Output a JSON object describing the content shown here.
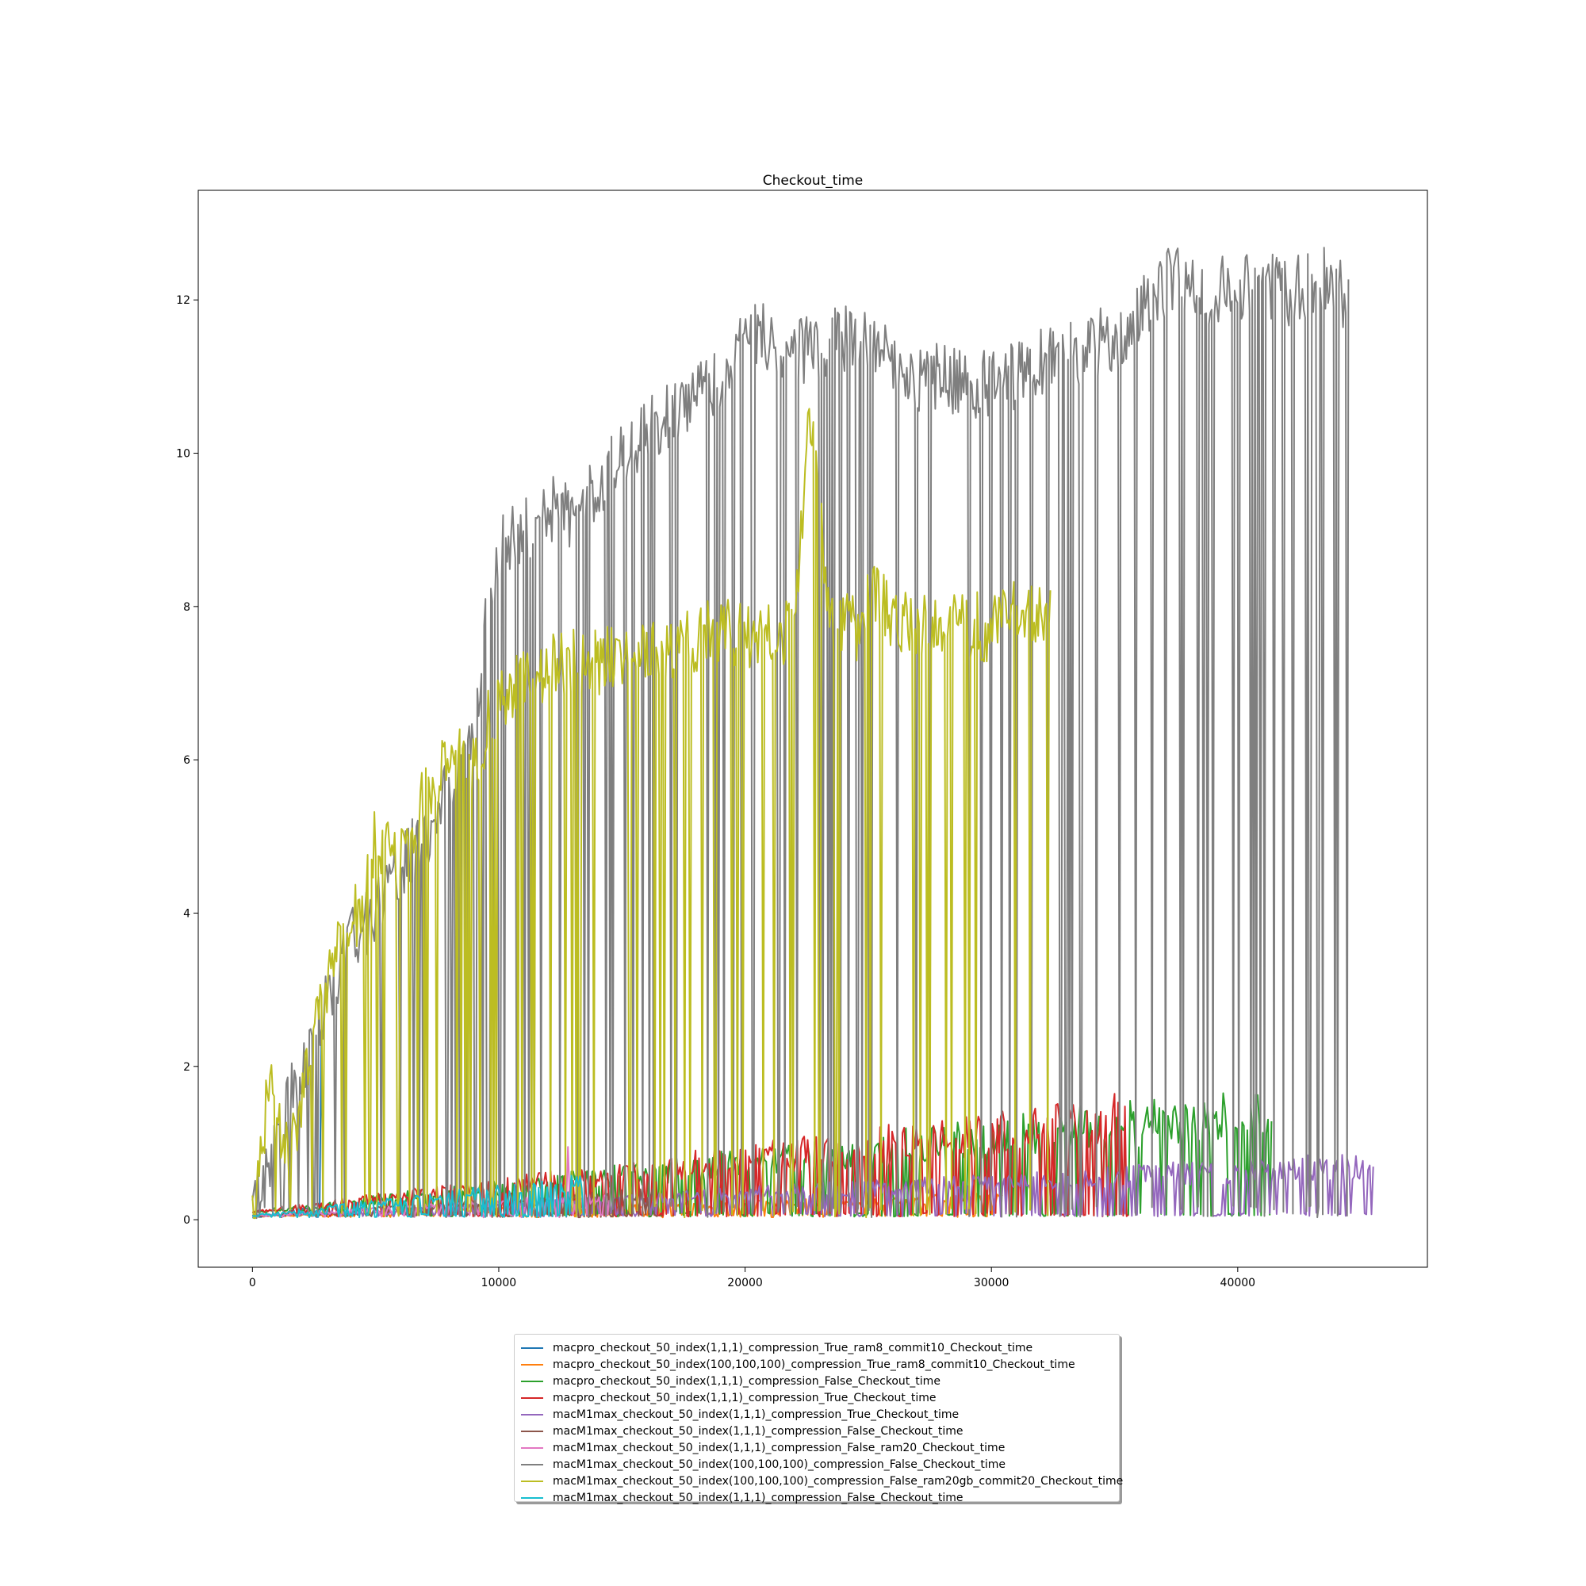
{
  "chart_data": {
    "type": "line",
    "title": "Checkout_time",
    "xlabel": "",
    "ylabel": "",
    "xlim": [
      -2200,
      47700
    ],
    "ylim": [
      -0.62,
      13.43
    ],
    "x_ticks": [
      0,
      10000,
      20000,
      30000,
      40000
    ],
    "x_tick_labels": [
      "0",
      "10000",
      "20000",
      "30000",
      "40000"
    ],
    "y_ticks": [
      0,
      2,
      4,
      6,
      8,
      10,
      12
    ],
    "y_tick_labels": [
      "0",
      "2",
      "4",
      "6",
      "8",
      "10",
      "12"
    ],
    "grid": false,
    "legend_position": "below",
    "series": [
      {
        "name": "macpro_checkout_50_index(1,1,1)_compression_True_ram8_commit10_Checkout_time",
        "color": "#1f77b4",
        "x_max": 3200,
        "base_start": 0.03,
        "base_end": 0.2,
        "spike_max": 2.4,
        "pattern": "low-noisy-with-spike"
      },
      {
        "name": "macpro_checkout_50_index(100,100,100)_compression_True_ram8_commit10_Checkout_time",
        "color": "#ff7f0e",
        "x_max": 30500,
        "base_start": 0.05,
        "base_end": 0.3,
        "pattern": "low-noisy"
      },
      {
        "name": "macpro_checkout_50_index(1,1,1)_compression_False_Checkout_time",
        "color": "#2ca02c",
        "x_max": 41400,
        "base_start": 0.1,
        "base_end": 1.5,
        "pattern": "rising-with-dropouts"
      },
      {
        "name": "macpro_checkout_50_index(1,1,1)_compression_True_Checkout_time",
        "color": "#d62728",
        "x_max": 35600,
        "base_start": 0.1,
        "base_end": 1.4,
        "pattern": "rising-with-dropouts"
      },
      {
        "name": "macM1max_checkout_50_index(1,1,1)_compression_True_Checkout_time",
        "color": "#9467bd",
        "x_max": 45500,
        "base_start": 0.05,
        "base_end": 0.75,
        "pattern": "rising-with-dropouts"
      },
      {
        "name": "macM1max_checkout_50_index(1,1,1)_compression_False_Checkout_time",
        "color": "#8c564b",
        "x_max": 16500,
        "base_start": 0.05,
        "base_end": 0.35,
        "pattern": "low-noisy"
      },
      {
        "name": "macM1max_checkout_50_index(1,1,1)_compression_False_ram20_Checkout_time",
        "color": "#e377c2",
        "x_max": 14500,
        "base_start": 0.05,
        "base_end": 0.3,
        "spike_max": 0.95,
        "pattern": "low-noisy-with-spike"
      },
      {
        "name": "macM1max_checkout_50_index(100,100,100)_compression_False_Checkout_time",
        "color": "#7f7f7f",
        "x_max": 44500,
        "pattern": "curve-with-dropouts",
        "x": [
          0,
          1000,
          2000,
          3000,
          4000,
          5000,
          6000,
          7000,
          8000,
          9000,
          9500,
          10000,
          11000,
          12000,
          13000,
          14000,
          15000,
          16000,
          17000,
          18000,
          19000,
          20000,
          21000,
          22000,
          23000,
          24000,
          25000,
          26000,
          27000,
          28000,
          29000,
          30000,
          31000,
          32000,
          33000,
          34000,
          35000,
          36000,
          37000,
          38000,
          39000,
          40000,
          41000,
          42000,
          43000,
          44000,
          44500
        ],
        "y": [
          0.05,
          1.0,
          2.0,
          2.8,
          3.6,
          4.0,
          4.6,
          5.0,
          5.6,
          6.3,
          7.8,
          8.7,
          9.0,
          9.3,
          9.2,
          9.6,
          10.0,
          10.3,
          10.5,
          10.8,
          11.0,
          11.5,
          11.5,
          11.3,
          11.4,
          11.5,
          11.5,
          11.2,
          11.0,
          11.0,
          10.9,
          10.9,
          11.0,
          11.2,
          11.3,
          11.4,
          11.5,
          11.8,
          12.2,
          12.3,
          12.1,
          12.2,
          12.2,
          12.1,
          12.2,
          12.3,
          11.9
        ]
      },
      {
        "name": "macM1max_checkout_50_index(100,100,100)_compression_False_ram20gb_commit20_Checkout_time",
        "color": "#bcbd22",
        "x_max": 32400,
        "pattern": "curve-with-dropouts",
        "x": [
          0,
          700,
          1500,
          2500,
          3500,
          4500,
          5000,
          6000,
          7000,
          8000,
          9000,
          10000,
          11000,
          12000,
          13000,
          14000,
          15000,
          16000,
          17000,
          18000,
          19000,
          20000,
          21000,
          22000,
          22600,
          23500,
          24500,
          25000,
          26000,
          27000,
          28000,
          29000,
          30000,
          31000,
          32000,
          32400
        ],
        "y": [
          0.05,
          1.8,
          0.8,
          2.5,
          3.5,
          4.2,
          5.0,
          4.7,
          5.5,
          6.0,
          6.0,
          6.8,
          7.0,
          7.2,
          7.3,
          7.3,
          7.3,
          7.4,
          7.5,
          7.6,
          7.7,
          7.6,
          7.7,
          7.6,
          10.6,
          7.8,
          7.7,
          8.3,
          7.8,
          7.8,
          7.7,
          7.8,
          7.7,
          7.9,
          8.0,
          7.9
        ]
      },
      {
        "name": "macM1max_checkout_50_index(1,1,1)_compression_False_Checkout_time",
        "color": "#17becf",
        "x_max": 13500,
        "base_start": 0.05,
        "base_end": 0.5,
        "pattern": "low-noisy"
      }
    ]
  }
}
